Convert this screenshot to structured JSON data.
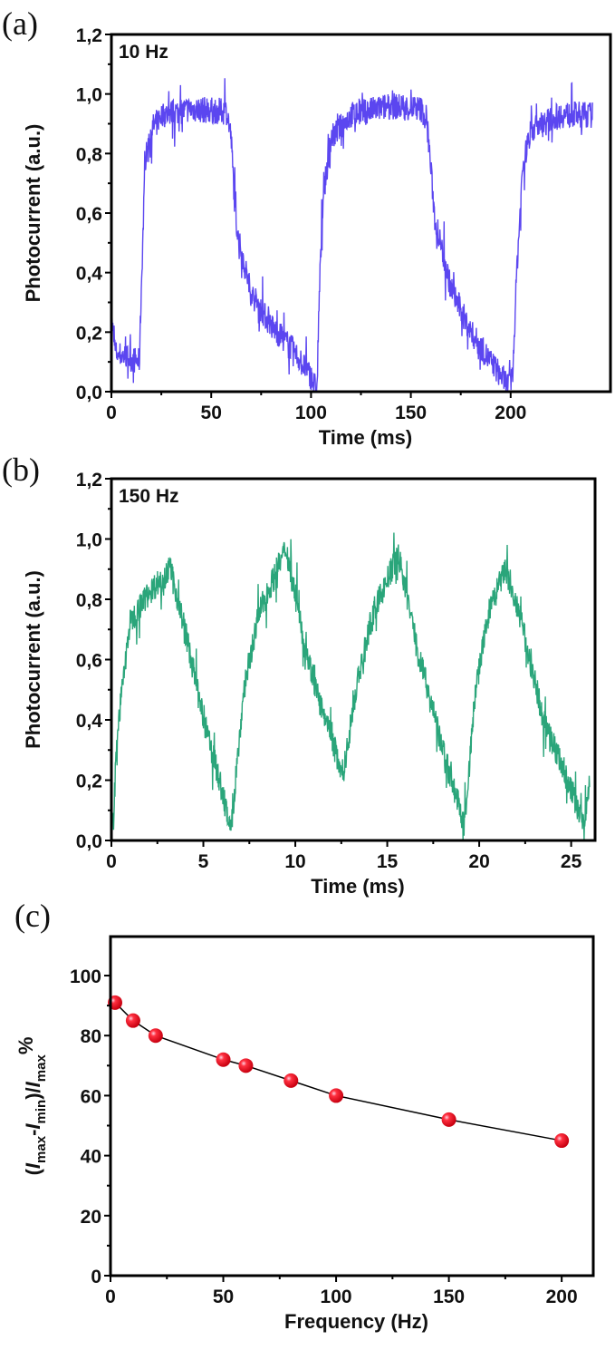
{
  "chart_data": [
    {
      "type": "line",
      "panel_label": "(a)",
      "annotation": "10 Hz",
      "xlabel": "Time (ms)",
      "ylabel": "Photocurrent (a.u.)",
      "xlim": [
        0,
        250
      ],
      "ylim": [
        0,
        1.2
      ],
      "xticks": [
        0,
        50,
        100,
        150,
        200
      ],
      "xtick_labels": [
        "0",
        "50",
        "100",
        "150",
        "200"
      ],
      "yticks": [
        0,
        0.2,
        0.4,
        0.6,
        0.8,
        1.0,
        1.2
      ],
      "ytick_labels": [
        "0,0",
        "0,2",
        "0,4",
        "0,6",
        "0,8",
        "1,0",
        "1,2"
      ],
      "color": "#5b46f0",
      "series": [
        {
          "x": [
            0,
            2,
            14,
            15,
            17,
            20,
            25,
            40,
            58,
            60,
            62,
            64,
            70,
            80,
            90,
            100,
            103,
            104,
            106,
            110,
            120,
            140,
            155,
            158,
            160,
            162,
            170,
            180,
            190,
            199,
            201,
            203,
            206,
            210,
            225,
            241
          ],
          "y": [
            0.25,
            0.13,
            0.1,
            0.35,
            0.78,
            0.88,
            0.93,
            0.95,
            0.94,
            0.85,
            0.6,
            0.5,
            0.33,
            0.22,
            0.15,
            0.05,
            0.0,
            0.3,
            0.65,
            0.85,
            0.93,
            0.96,
            0.95,
            0.92,
            0.75,
            0.58,
            0.35,
            0.2,
            0.1,
            0.02,
            0.05,
            0.4,
            0.75,
            0.88,
            0.93,
            0.93
          ]
        }
      ]
    },
    {
      "type": "line",
      "panel_label": "(b)",
      "annotation": "150 Hz",
      "xlabel": "Time (ms)",
      "ylabel": "Photocurrent (a.u.)",
      "xlim": [
        0,
        26.3
      ],
      "ylim": [
        0,
        1.2
      ],
      "xticks": [
        0,
        5,
        10,
        15,
        20,
        25
      ],
      "xtick_labels": [
        "0",
        "5",
        "10",
        "15",
        "20",
        "25"
      ],
      "yticks": [
        0,
        0.2,
        0.4,
        0.6,
        0.8,
        1.0,
        1.2
      ],
      "ytick_labels": [
        "0,0",
        "0,2",
        "0,4",
        "0,6",
        "0,8",
        "1,0",
        "1,2"
      ],
      "color": "#2aa57a",
      "series": [
        {
          "x": [
            0.1,
            0.3,
            1.0,
            2.0,
            3.2,
            4.0,
            5.0,
            5.8,
            6.5,
            7.2,
            8.0,
            9.5,
            10.5,
            11.5,
            12.6,
            13.3,
            14.2,
            15.6,
            16.6,
            17.8,
            19.2,
            19.8,
            20.5,
            21.4,
            22.3,
            23.5,
            24.5,
            25.7,
            26.0
          ],
          "y": [
            0.05,
            0.35,
            0.72,
            0.82,
            0.9,
            0.7,
            0.4,
            0.22,
            0.03,
            0.5,
            0.75,
            0.97,
            0.65,
            0.42,
            0.22,
            0.5,
            0.75,
            0.95,
            0.65,
            0.35,
            0.05,
            0.5,
            0.75,
            0.9,
            0.72,
            0.4,
            0.25,
            0.05,
            0.2
          ]
        }
      ]
    },
    {
      "type": "scatter",
      "panel_label": "(c)",
      "xlabel": "Frequency (Hz)",
      "ylabel": "(I_max-I_min)/I_max%",
      "ylabel_parts": {
        "open": "(",
        "I": "I",
        "max": "max",
        "minus": "-",
        "min": "min",
        "close": ")/",
        "pct": "%"
      },
      "xlim": [
        0,
        214
      ],
      "ylim": [
        0,
        113
      ],
      "xticks": [
        0,
        50,
        100,
        150,
        200
      ],
      "xtick_labels": [
        "0",
        "50",
        "100",
        "150",
        "200"
      ],
      "yticks": [
        0,
        20,
        40,
        60,
        80,
        100
      ],
      "ytick_labels": [
        "0",
        "20",
        "40",
        "60",
        "80",
        "100"
      ],
      "marker_color": "#ee1c2a",
      "line_color": "#000000",
      "series": [
        {
          "x": [
            2,
            10,
            20,
            50,
            60,
            80,
            100,
            150,
            200
          ],
          "y": [
            91,
            85,
            80,
            72,
            70,
            65,
            60,
            52,
            45
          ]
        }
      ]
    }
  ]
}
